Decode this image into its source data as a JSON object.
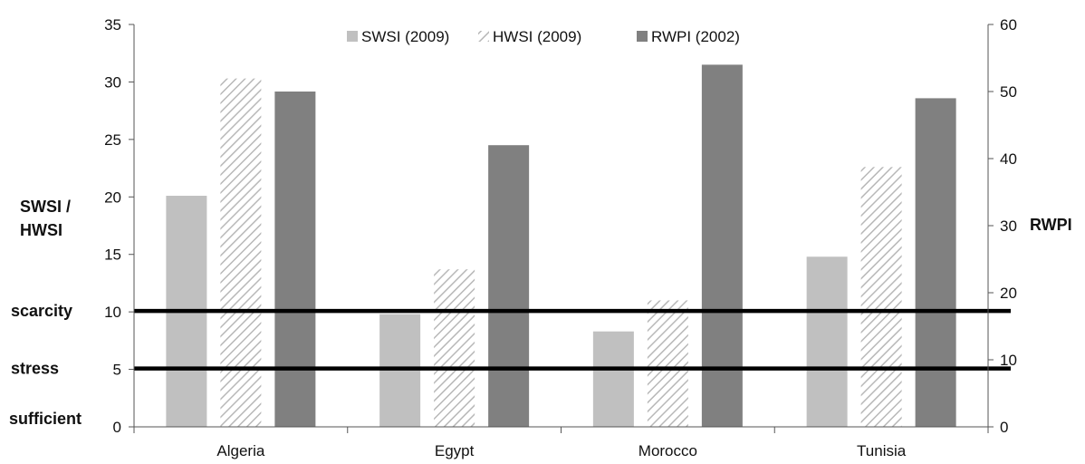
{
  "chart_data": {
    "type": "bar",
    "categories": [
      "Algeria",
      "Egypt",
      "Morocco",
      "Tunisia"
    ],
    "series": [
      {
        "name": "SWSI (2009)",
        "axis": "left",
        "color": "#c0c0c0",
        "pattern": "solid",
        "values": [
          20.1,
          9.8,
          8.3,
          14.8
        ]
      },
      {
        "name": "HWSI (2009)",
        "axis": "left",
        "color": "#b8b8b8",
        "pattern": "hatched",
        "values": [
          30.3,
          13.7,
          11.0,
          22.6
        ]
      },
      {
        "name": "RWPI (2002)",
        "axis": "right",
        "color": "#808080",
        "pattern": "solid",
        "values": [
          50.0,
          42.0,
          54.0,
          49.0
        ]
      }
    ],
    "left_axis": {
      "label_line1": "SWSI /",
      "label_line2": "HWSI",
      "ylim": [
        0,
        35
      ],
      "ticks": [
        0,
        5,
        10,
        15,
        20,
        25,
        30,
        35
      ]
    },
    "right_axis": {
      "label": "RWPI",
      "ylim": [
        0,
        60
      ],
      "ticks": [
        0,
        10,
        20,
        30,
        40,
        50,
        60
      ]
    },
    "thresholds": [
      {
        "label": "scarcity",
        "value": 10
      },
      {
        "label": "stress",
        "value": 5
      }
    ],
    "zone_label": "sufficient",
    "legend_position": "top-center",
    "grid": false
  }
}
